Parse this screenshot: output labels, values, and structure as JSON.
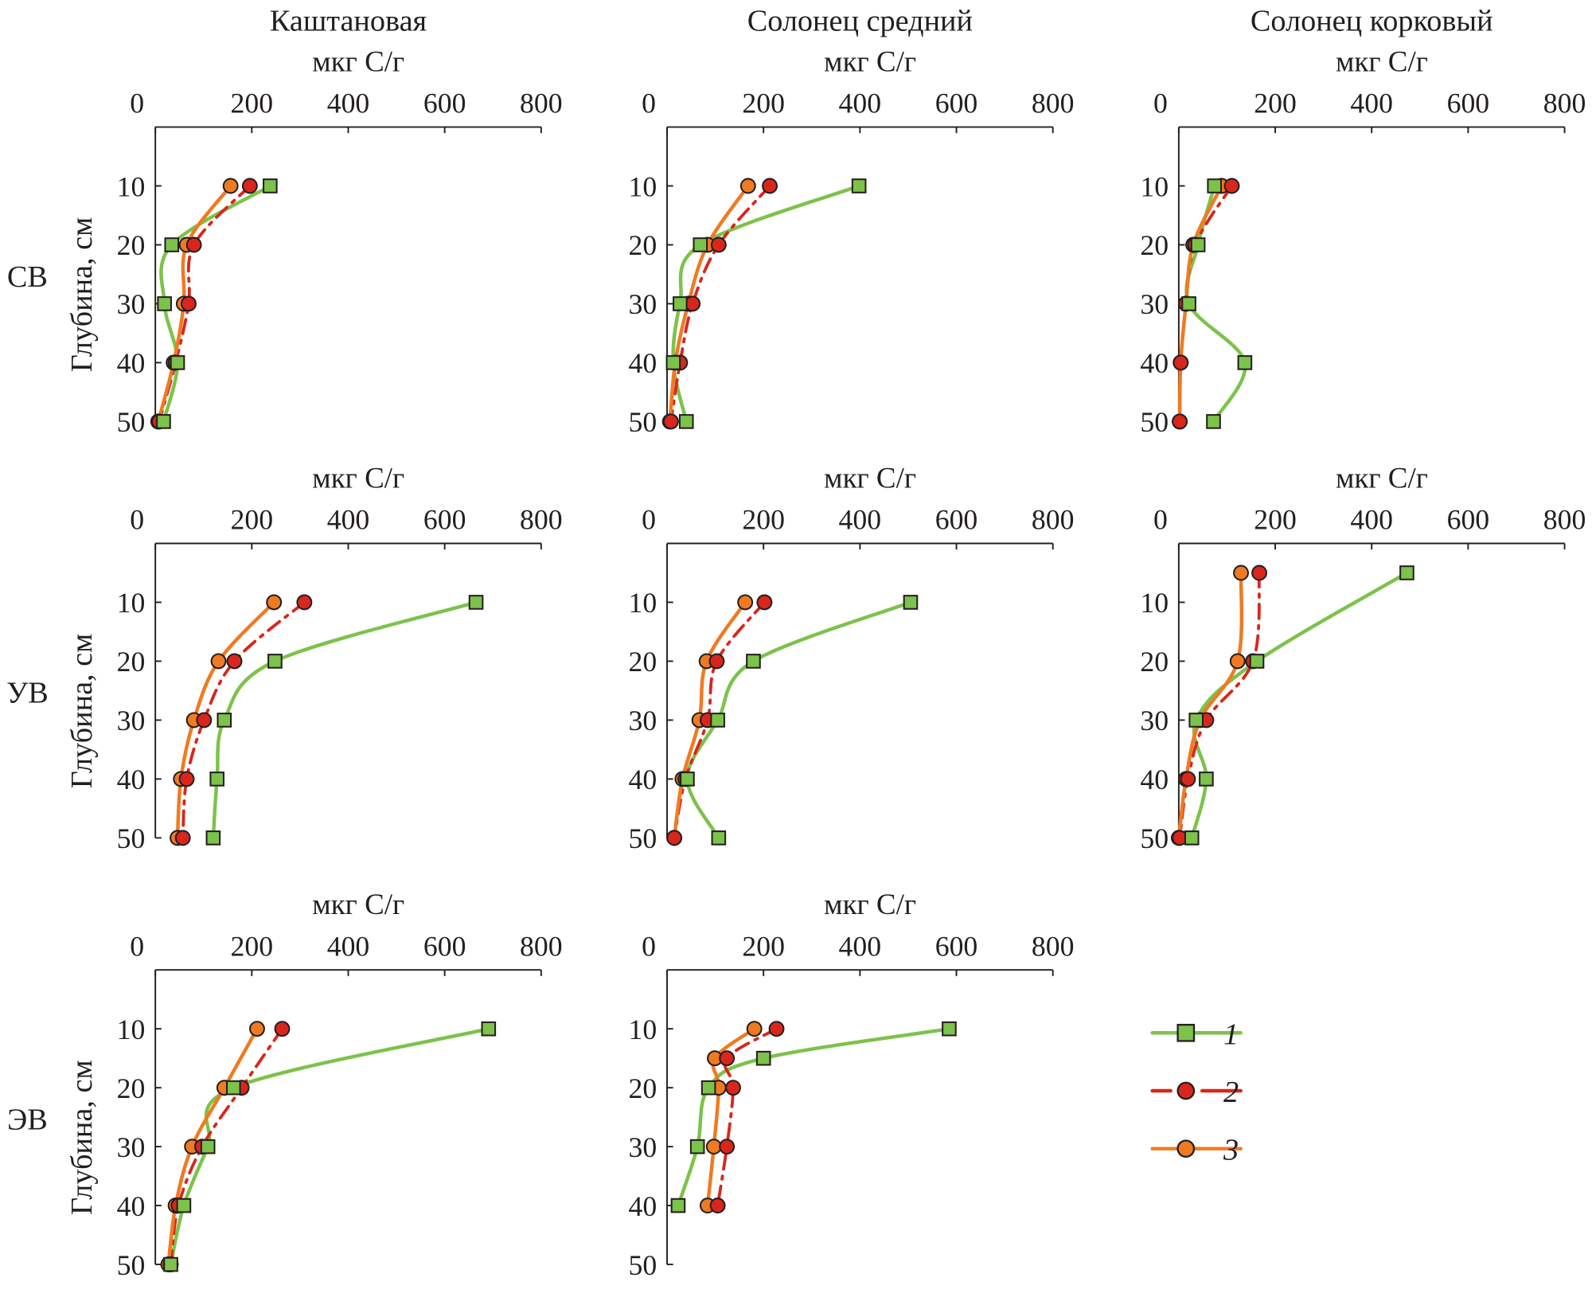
{
  "chart_data": {
    "type": "line",
    "column_titles": [
      "Каштановая",
      "Солонец средний",
      "Солонец корковый"
    ],
    "row_labels": [
      "СВ",
      "УВ",
      "ЭВ"
    ],
    "xlabel": "мкг С/г",
    "ylabel": "Глубина, см",
    "xlim": [
      0,
      800
    ],
    "xticks": [
      "0",
      "200",
      "400",
      "600",
      "800"
    ],
    "ylim": [
      0,
      50
    ],
    "yticks": [
      "10",
      "20",
      "30",
      "40",
      "50"
    ],
    "axis_orientation": "x on top, depth increasing downward",
    "grid": false,
    "legend_position": "bottom-right",
    "series_styles": [
      {
        "name": "1",
        "color": "#7dc24b",
        "marker": "square",
        "line": "solid"
      },
      {
        "name": "2",
        "color": "#d9261c",
        "marker": "circle",
        "line": "dash-dot"
      },
      {
        "name": "3",
        "color": "#f07a22",
        "marker": "circle",
        "line": "solid"
      }
    ],
    "panels": [
      {
        "row": 0,
        "col": 0,
        "depth": [
          10,
          20,
          30,
          40,
          50
        ],
        "series": [
          [
            238,
            34,
            19,
            46,
            17
          ],
          [
            196,
            80,
            69,
            42,
            8
          ],
          [
            156,
            65,
            59,
            38,
            6
          ]
        ]
      },
      {
        "row": 0,
        "col": 1,
        "depth": [
          10,
          20,
          30,
          40,
          50
        ],
        "series": [
          [
            398,
            69,
            27,
            13,
            40
          ],
          [
            213,
            107,
            53,
            27,
            8
          ],
          [
            168,
            84,
            44,
            17,
            6
          ]
        ]
      },
      {
        "row": 0,
        "col": 2,
        "depth": [
          10,
          20,
          30,
          40,
          50
        ],
        "series": [
          [
            74,
            40,
            21,
            137,
            72
          ],
          [
            110,
            34,
            15,
            4,
            2
          ],
          [
            89,
            30,
            15,
            4,
            2
          ]
        ]
      },
      {
        "row": 1,
        "col": 0,
        "depth": [
          10,
          20,
          30,
          40,
          50
        ],
        "series": [
          [
            665,
            248,
            143,
            128,
            120
          ],
          [
            309,
            164,
            101,
            65,
            57
          ],
          [
            246,
            131,
            80,
            53,
            46
          ]
        ]
      },
      {
        "row": 1,
        "col": 1,
        "depth": [
          10,
          20,
          30,
          40,
          50
        ],
        "series": [
          [
            505,
            179,
            105,
            42,
            107
          ],
          [
            202,
            103,
            84,
            38,
            15
          ],
          [
            162,
            82,
            67,
            32,
            15
          ]
        ]
      },
      {
        "row": 1,
        "col": 2,
        "depth": [
          5,
          20,
          30,
          40,
          50
        ],
        "series": [
          [
            473,
            162,
            36,
            57,
            27
          ],
          [
            167,
            154,
            57,
            19,
            2
          ],
          [
            129,
            122,
            44,
            15,
            0
          ]
        ]
      },
      {
        "row": 2,
        "col": 0,
        "depth": [
          10,
          20,
          30,
          40,
          50
        ],
        "series": [
          [
            691,
            162,
            109,
            59,
            32
          ],
          [
            263,
            179,
            97,
            48,
            32
          ],
          [
            211,
            143,
            76,
            42,
            27
          ]
        ]
      },
      {
        "row": 2,
        "col": 1,
        "depth": [
          10,
          15,
          20,
          30,
          40
        ],
        "series": [
          [
            585,
            200,
            86,
            63,
            23
          ],
          [
            227,
            124,
            137,
            124,
            105
          ],
          [
            181,
            99,
            107,
            97,
            84
          ]
        ]
      }
    ]
  }
}
